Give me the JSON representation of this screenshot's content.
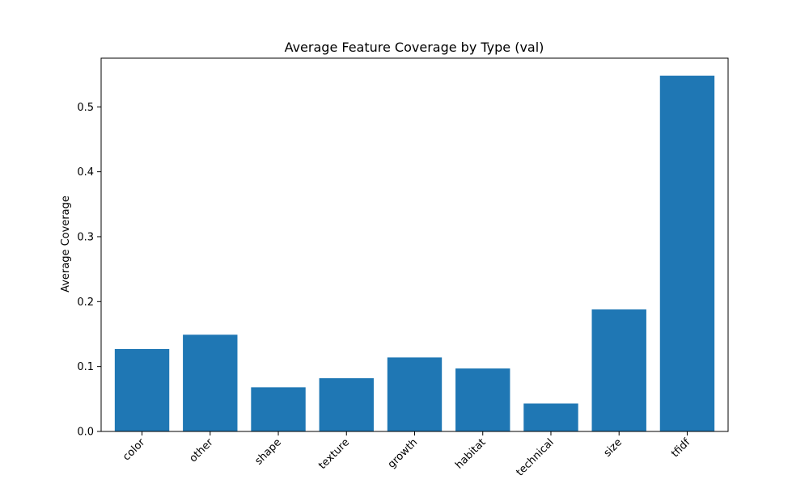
{
  "chart_data": {
    "type": "bar",
    "title": "Average Feature Coverage by Type (val)",
    "xlabel": "",
    "ylabel": "Average Coverage",
    "categories": [
      "color",
      "other",
      "shape",
      "texture",
      "growth",
      "habitat",
      "technical",
      "size",
      "tfidf"
    ],
    "values": [
      0.127,
      0.149,
      0.068,
      0.082,
      0.114,
      0.097,
      0.043,
      0.188,
      0.548
    ],
    "ylim": [
      0,
      0.575
    ],
    "yticks": [
      0.0,
      0.1,
      0.2,
      0.3,
      0.4,
      0.5
    ],
    "ytick_labels": [
      "0.0",
      "0.1",
      "0.2",
      "0.3",
      "0.4",
      "0.5"
    ],
    "grid": false,
    "legend": "none",
    "bar_color": "#1f77b4",
    "xtick_rotation_deg": 45
  }
}
